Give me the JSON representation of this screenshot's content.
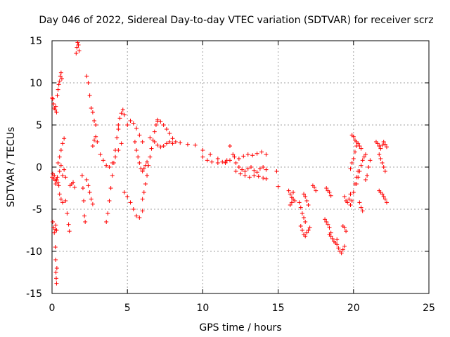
{
  "chart_data": {
    "type": "scatter",
    "title": "Day 046 of 2022, Sidereal Day-to-day VTEC variation (SDTVAR) for receiver scrz",
    "xlabel": "GPS time / hours",
    "ylabel": "SDTVAR / TECUs",
    "xlim": [
      0,
      25
    ],
    "ylim": [
      -15,
      15
    ],
    "xticks": [
      0,
      5,
      10,
      15,
      20,
      25
    ],
    "yticks": [
      -15,
      -10,
      -5,
      0,
      5,
      10,
      15
    ],
    "grid": true,
    "marker": "+",
    "color": "#ff0000",
    "series": [
      {
        "name": "SDTVAR",
        "traces": [
          {
            "x": [
              0.0,
              0.05,
              0.1,
              0.15,
              0.2,
              0.25,
              0.3
            ],
            "y": [
              8.2,
              8.1,
              7.5,
              7.0,
              6.8,
              7.2,
              6.5
            ]
          },
          {
            "x": [
              0.0,
              0.05,
              0.1,
              0.15,
              0.2,
              0.25,
              0.3,
              0.35,
              0.4,
              0.45
            ],
            "y": [
              -1.2,
              -0.8,
              -1.4,
              -1.0,
              -1.6,
              -2.0,
              -1.5,
              -1.2,
              -1.8,
              -2.2
            ]
          },
          {
            "x": [
              0.05,
              0.1,
              0.15,
              0.2,
              0.25,
              0.3
            ],
            "y": [
              -6.5,
              -7.2,
              -7.8,
              -7.4,
              -6.9,
              -7.5
            ]
          },
          {
            "x": [
              0.22,
              0.24,
              0.26,
              0.28,
              0.3,
              0.32
            ],
            "y": [
              -9.5,
              -11.0,
              -12.5,
              -13.2,
              -13.8,
              -12.0
            ]
          },
          {
            "x": [
              0.35,
              0.4,
              0.45,
              0.5,
              0.55,
              0.6,
              0.65
            ],
            "y": [
              8.5,
              9.2,
              9.8,
              10.2,
              10.8,
              11.2,
              10.5
            ]
          },
          {
            "x": [
              0.4,
              0.5,
              0.6,
              0.7,
              0.8
            ],
            "y": [
              0.5,
              1.2,
              2.0,
              2.8,
              3.4
            ]
          },
          {
            "x": [
              0.5,
              0.6,
              0.7,
              0.8,
              0.9
            ],
            "y": [
              -0.5,
              0.2,
              -1.0,
              -0.3,
              -1.2
            ]
          },
          {
            "x": [
              0.5,
              0.6,
              0.7
            ],
            "y": [
              -3.2,
              -3.8,
              -4.2
            ]
          },
          {
            "x": [
              0.9,
              1.0,
              1.1,
              1.15
            ],
            "y": [
              -4.0,
              -5.5,
              -6.8,
              -7.6
            ]
          },
          {
            "x": [
              1.2,
              1.3,
              1.4,
              1.5
            ],
            "y": [
              -2.2,
              -2.0,
              -1.8,
              -2.4
            ]
          },
          {
            "x": [
              1.6,
              1.65,
              1.7,
              1.75,
              1.8
            ],
            "y": [
              13.5,
              14.2,
              14.8,
              14.5,
              13.8
            ]
          },
          {
            "x": [
              2.0,
              2.05,
              2.1,
              2.15,
              2.2
            ],
            "y": [
              -1.0,
              -2.5,
              -4.0,
              -5.8,
              -6.5
            ]
          },
          {
            "x": [
              2.3,
              2.4,
              2.5,
              2.6,
              2.7,
              2.8,
              2.9
            ],
            "y": [
              10.8,
              10.0,
              8.5,
              7.0,
              6.5,
              5.5,
              5.0
            ]
          },
          {
            "x": [
              2.3,
              2.4,
              2.5,
              2.6,
              2.7
            ],
            "y": [
              -1.5,
              -2.2,
              -3.0,
              -3.8,
              -4.4
            ]
          },
          {
            "x": [
              2.7,
              2.8,
              2.9,
              3.0
            ],
            "y": [
              2.5,
              3.2,
              3.6,
              3.0
            ]
          },
          {
            "x": [
              3.2,
              3.4,
              3.6,
              3.8,
              4.0,
              4.2,
              4.4,
              4.6
            ],
            "y": [
              1.5,
              0.8,
              0.2,
              0.0,
              0.5,
              1.2,
              2.0,
              2.8
            ]
          },
          {
            "x": [
              3.6,
              3.7,
              3.8,
              3.9,
              4.0,
              4.1,
              4.2,
              4.3,
              4.4
            ],
            "y": [
              -6.5,
              -5.5,
              -4.0,
              -2.5,
              -1.0,
              0.5,
              2.0,
              3.5,
              4.5
            ]
          },
          {
            "x": [
              4.4,
              4.5,
              4.6,
              4.7,
              4.8
            ],
            "y": [
              5.0,
              5.8,
              6.4,
              6.8,
              6.2
            ]
          },
          {
            "x": [
              4.8,
              5.0,
              5.2,
              5.4,
              5.6,
              5.8,
              6.0
            ],
            "y": [
              -3.0,
              -3.5,
              -4.2,
              -5.0,
              -5.8,
              -6.0,
              -5.2
            ]
          },
          {
            "x": [
              5.0,
              5.2,
              5.4,
              5.6,
              5.8,
              6.0
            ],
            "y": [
              5.0,
              5.5,
              5.2,
              4.6,
              3.8,
              3.0
            ]
          },
          {
            "x": [
              5.5,
              5.6,
              5.7,
              5.8,
              5.9,
              6.0,
              6.1,
              6.2,
              6.3
            ],
            "y": [
              3.0,
              2.0,
              1.2,
              0.5,
              -0.2,
              -0.5,
              -0.2,
              0.2,
              0.6
            ]
          },
          {
            "x": [
              6.0,
              6.1,
              6.2,
              6.3,
              6.4,
              6.5,
              6.6,
              6.7,
              6.8,
              6.9,
              7.0
            ],
            "y": [
              -3.8,
              -3.0,
              -2.0,
              -1.0,
              0.2,
              1.2,
              2.2,
              3.2,
              4.2,
              5.0,
              5.4
            ]
          },
          {
            "x": [
              6.5,
              6.8,
              7.0,
              7.2,
              7.4,
              7.6,
              7.8
            ],
            "y": [
              3.5,
              3.0,
              2.6,
              2.4,
              2.5,
              2.8,
              3.0
            ]
          },
          {
            "x": [
              7.0,
              7.2,
              7.4,
              7.6,
              7.8,
              8.0,
              8.2
            ],
            "y": [
              5.6,
              5.4,
              5.0,
              4.5,
              4.0,
              3.4,
              3.0
            ]
          },
          {
            "x": [
              8.0,
              8.5,
              9.0,
              9.5,
              10.0,
              10.5,
              11.0,
              11.5
            ],
            "y": [
              2.8,
              2.9,
              2.7,
              2.6,
              2.0,
              1.5,
              1.0,
              0.6
            ]
          },
          {
            "x": [
              10.0,
              10.3,
              10.6,
              11.0,
              11.3,
              11.6
            ],
            "y": [
              1.2,
              0.8,
              0.6,
              0.5,
              0.6,
              0.8
            ]
          },
          {
            "x": [
              11.5,
              11.8,
              12.1,
              12.4,
              12.7,
              13.0,
              13.3,
              13.6,
              13.9,
              14.2
            ],
            "y": [
              0.5,
              0.8,
              1.2,
              1.0,
              1.3,
              1.5,
              1.4,
              1.6,
              1.8,
              1.5
            ]
          },
          {
            "x": [
              11.8,
              12.0,
              12.2,
              12.4,
              12.6,
              12.8,
              13.0,
              13.2,
              13.4,
              13.6,
              13.8,
              14.0,
              14.2
            ],
            "y": [
              2.5,
              1.5,
              0.5,
              0.0,
              -0.3,
              -0.5,
              -0.2,
              0.0,
              -0.4,
              -0.6,
              -0.2,
              0.0,
              -0.3
            ]
          },
          {
            "x": [
              12.2,
              12.5,
              12.8,
              13.1,
              13.4,
              13.7,
              14.0,
              14.2
            ],
            "y": [
              -0.5,
              -0.8,
              -1.0,
              -1.2,
              -1.0,
              -1.1,
              -1.3,
              -1.4
            ]
          },
          {
            "x": [
              14.9,
              15.0
            ],
            "y": [
              -0.5,
              -2.3
            ]
          },
          {
            "x": [
              15.7,
              15.8,
              15.9,
              16.0
            ],
            "y": [
              -2.8,
              -3.2,
              -3.6,
              -3.0
            ]
          },
          {
            "x": [
              15.8,
              15.9,
              16.0,
              16.1
            ],
            "y": [
              -4.5,
              -4.2,
              -3.8,
              -4.0
            ]
          },
          {
            "x": [
              16.4,
              16.5,
              16.6,
              16.7,
              16.8
            ],
            "y": [
              -4.2,
              -4.8,
              -5.5,
              -6.0,
              -6.5
            ]
          },
          {
            "x": [
              16.5,
              16.6,
              16.7,
              16.8,
              16.9,
              17.0,
              17.1
            ],
            "y": [
              -7.0,
              -7.5,
              -8.0,
              -8.2,
              -7.8,
              -7.5,
              -7.2
            ]
          },
          {
            "x": [
              16.7,
              16.8,
              16.9,
              17.0
            ],
            "y": [
              -3.2,
              -3.5,
              -4.0,
              -4.5
            ]
          },
          {
            "x": [
              17.3,
              17.4,
              17.5
            ],
            "y": [
              -2.2,
              -2.4,
              -2.8
            ]
          },
          {
            "x": [
              18.1,
              18.2,
              18.3,
              18.4,
              18.5
            ],
            "y": [
              -6.2,
              -6.5,
              -6.8,
              -7.2,
              -7.8
            ]
          },
          {
            "x": [
              18.2,
              18.3,
              18.4,
              18.5
            ],
            "y": [
              -2.5,
              -2.8,
              -3.0,
              -3.4
            ]
          },
          {
            "x": [
              18.4,
              18.5,
              18.6,
              18.7,
              18.8,
              18.9
            ],
            "y": [
              -8.0,
              -8.2,
              -8.5,
              -8.8,
              -9.0,
              -8.6
            ]
          },
          {
            "x": [
              18.9,
              19.0,
              19.1,
              19.2,
              19.3,
              19.4
            ],
            "y": [
              -9.2,
              -9.6,
              -10.0,
              -10.2,
              -9.8,
              -9.4
            ]
          },
          {
            "x": [
              19.3,
              19.4,
              19.5
            ],
            "y": [
              -7.0,
              -7.2,
              -7.6
            ]
          },
          {
            "x": [
              19.4,
              19.5,
              19.6,
              19.7,
              19.8
            ],
            "y": [
              -3.5,
              -4.0,
              -4.2,
              -3.8,
              -3.2
            ]
          },
          {
            "x": [
              19.8,
              19.9,
              20.0,
              20.1,
              20.2,
              20.3
            ],
            "y": [
              -4.5,
              -4.0,
              -3.0,
              -2.0,
              -1.2,
              -0.5
            ]
          },
          {
            "x": [
              19.8,
              19.9,
              20.0,
              20.1,
              20.2
            ],
            "y": [
              -0.2,
              0.5,
              1.0,
              1.8,
              2.5
            ]
          },
          {
            "x": [
              19.9,
              20.0,
              20.1,
              20.2,
              20.3,
              20.4,
              20.5
            ],
            "y": [
              3.8,
              3.6,
              3.2,
              3.0,
              2.8,
              2.5,
              2.2
            ]
          },
          {
            "x": [
              20.2,
              20.3,
              20.4,
              20.5,
              20.6,
              20.7,
              20.8
            ],
            "y": [
              -2.0,
              -1.2,
              -0.5,
              0.2,
              0.8,
              1.2,
              1.5
            ]
          },
          {
            "x": [
              20.4,
              20.5,
              20.6
            ],
            "y": [
              -4.2,
              -4.8,
              -5.2
            ]
          },
          {
            "x": [
              20.8,
              20.9,
              21.0,
              21.1
            ],
            "y": [
              -1.5,
              -1.0,
              0.0,
              0.8
            ]
          },
          {
            "x": [
              21.5,
              21.6,
              21.7,
              21.8,
              21.9,
              22.0,
              22.1,
              22.2
            ],
            "y": [
              3.0,
              2.8,
              2.5,
              2.2,
              2.6,
              3.0,
              2.7,
              2.4
            ]
          },
          {
            "x": [
              21.7,
              21.8,
              21.9,
              22.0,
              22.1
            ],
            "y": [
              1.5,
              1.0,
              0.5,
              0.0,
              -0.5
            ]
          },
          {
            "x": [
              21.7,
              21.8,
              21.9,
              22.0,
              22.1,
              22.2
            ],
            "y": [
              -2.8,
              -3.0,
              -3.2,
              -3.5,
              -3.8,
              -4.2
            ]
          }
        ]
      }
    ]
  }
}
